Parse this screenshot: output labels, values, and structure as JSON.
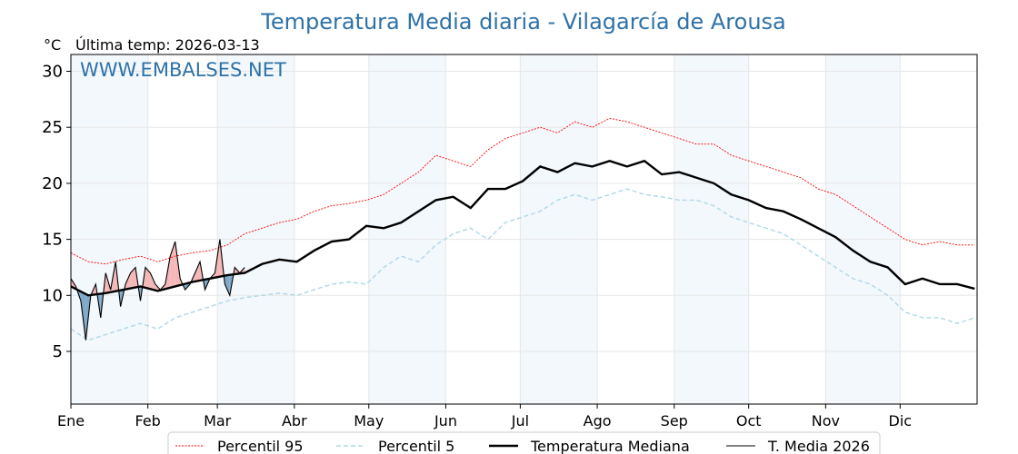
{
  "chart_data": {
    "type": "line",
    "title": "Temperatura Media diaria - Vilagarcía de Arousa",
    "ylabel": "°C",
    "subtitle": "Última temp: 2026-03-13",
    "watermark": "WWW.EMBALSES.NET",
    "ylim": [
      0.3,
      31.5
    ],
    "xlim": [
      0,
      365
    ],
    "yticks": [
      5,
      10,
      15,
      20,
      25,
      30
    ],
    "month_labels": [
      "Ene",
      "Feb",
      "Mar",
      "Abr",
      "May",
      "Jun",
      "Jul",
      "Ago",
      "Sep",
      "Oct",
      "Nov",
      "Dic"
    ],
    "month_starts": [
      0,
      31,
      59,
      90,
      120,
      151,
      181,
      212,
      243,
      273,
      304,
      334
    ],
    "grid": true,
    "legend_position": "bottom-center",
    "series": [
      {
        "name": "Percentil 95",
        "color": "#ff0000",
        "step_days": 7,
        "values": [
          13.8,
          13.0,
          12.8,
          13.2,
          13.5,
          13.0,
          13.5,
          13.8,
          14.0,
          14.5,
          15.5,
          16.0,
          16.5,
          16.8,
          17.5,
          18.0,
          18.2,
          18.5,
          19.0,
          20.0,
          21.0,
          22.5,
          22.0,
          21.5,
          23.0,
          24.0,
          24.5,
          25.0,
          24.5,
          25.5,
          25.0,
          25.8,
          25.5,
          25.0,
          24.5,
          24.0,
          23.5,
          23.5,
          22.5,
          22.0,
          21.5,
          21.0,
          20.5,
          19.5,
          19.0,
          18.0,
          17.0,
          16.0,
          15.0,
          14.5,
          14.8,
          14.5,
          14.5
        ]
      },
      {
        "name": "Percentil 5",
        "color": "#add8e6",
        "step_days": 7,
        "values": [
          7.0,
          6.0,
          6.5,
          7.0,
          7.5,
          7.0,
          8.0,
          8.5,
          9.0,
          9.5,
          9.8,
          10.0,
          10.2,
          10.0,
          10.5,
          11.0,
          11.2,
          11.0,
          12.5,
          13.5,
          13.0,
          14.5,
          15.5,
          16.0,
          15.0,
          16.5,
          17.0,
          17.5,
          18.5,
          19.0,
          18.5,
          19.0,
          19.5,
          19.0,
          18.8,
          18.5,
          18.5,
          18.0,
          17.0,
          16.5,
          16.0,
          15.5,
          14.5,
          13.5,
          12.5,
          11.5,
          11.0,
          10.0,
          8.5,
          8.0,
          8.0,
          7.5,
          8.0
        ]
      },
      {
        "name": "Temperatura Mediana",
        "color": "#000000",
        "step_days": 7,
        "values": [
          10.8,
          10.0,
          10.2,
          10.5,
          10.8,
          10.4,
          10.8,
          11.2,
          11.5,
          11.8,
          12.0,
          12.8,
          13.2,
          13.0,
          14.0,
          14.8,
          15.0,
          16.2,
          16.0,
          16.5,
          17.5,
          18.5,
          18.8,
          17.8,
          19.5,
          19.5,
          20.2,
          21.5,
          21.0,
          21.8,
          21.5,
          22.0,
          21.5,
          22.0,
          20.8,
          21.0,
          20.5,
          20.0,
          19.0,
          18.5,
          17.8,
          17.5,
          16.8,
          16.0,
          15.2,
          14.0,
          13.0,
          12.5,
          11.0,
          11.5,
          11.0,
          11.0,
          10.6
        ]
      },
      {
        "name": "T. Media 2026",
        "color": "#000000",
        "step_days": 2,
        "values": [
          11.5,
          10.8,
          9.5,
          6.0,
          10.0,
          11.0,
          8.0,
          12.0,
          10.5,
          13.0,
          9.0,
          11.0,
          12.0,
          12.5,
          9.5,
          12.5,
          12.0,
          11.0,
          10.5,
          11.0,
          13.5,
          14.8,
          11.5,
          10.5,
          11.0,
          12.0,
          13.0,
          10.5,
          11.5,
          12.0,
          15.0,
          11.0,
          10.0,
          12.5,
          12.0,
          12.5
        ]
      }
    ],
    "fill_above_color": "#f4b8b8",
    "fill_below_color": "#80a8c8"
  }
}
